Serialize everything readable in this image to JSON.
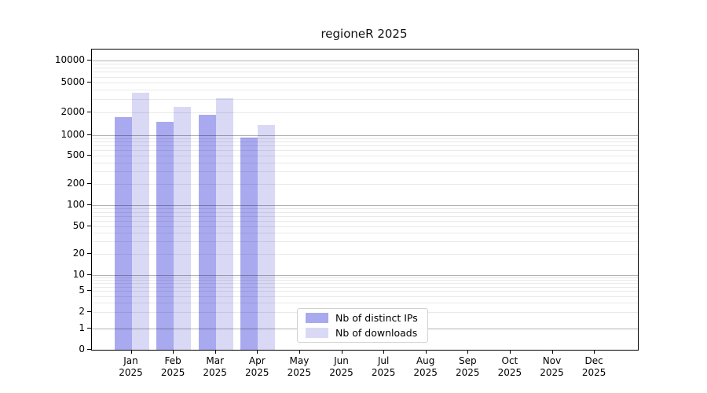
{
  "title": "regioneR 2025",
  "chart_data": {
    "type": "bar",
    "title": "regioneR 2025",
    "categories": [
      "Jan",
      "Feb",
      "Mar",
      "Apr",
      "May",
      "Jun",
      "Jul",
      "Aug",
      "Sep",
      "Oct",
      "Nov",
      "Dec"
    ],
    "year": "2025",
    "series": [
      {
        "name": "Nb of distinct IPs",
        "color": "#a9a9f0",
        "values": [
          1725,
          1490,
          1855,
          925,
          null,
          null,
          null,
          null,
          null,
          null,
          null,
          null
        ]
      },
      {
        "name": "Nb of downloads",
        "color": "#d9d9f6",
        "values": [
          3660,
          2365,
          3090,
          1355,
          null,
          null,
          null,
          null,
          null,
          null,
          null,
          null
        ]
      }
    ],
    "y_axis": {
      "scale": "log-above-1-linear-below",
      "ticks": [
        0,
        1,
        2,
        5,
        10,
        20,
        50,
        100,
        200,
        500,
        1000,
        2000,
        5000,
        10000
      ],
      "major_decades": [
        1,
        10,
        100,
        1000,
        10000
      ],
      "ylim_top": 15000
    },
    "x_axis": {
      "tick_label_line2": "2025"
    },
    "legend": {
      "position": "lower center",
      "labels": [
        "Nb of distinct IPs",
        "Nb of downloads"
      ]
    },
    "grid": "on"
  },
  "colors": {
    "distinct_ips": "#a9a9f0",
    "downloads": "#d9d9f6",
    "grid_major": "#b3b3b3",
    "grid_minor": "#ececec",
    "axis": "#000000"
  }
}
